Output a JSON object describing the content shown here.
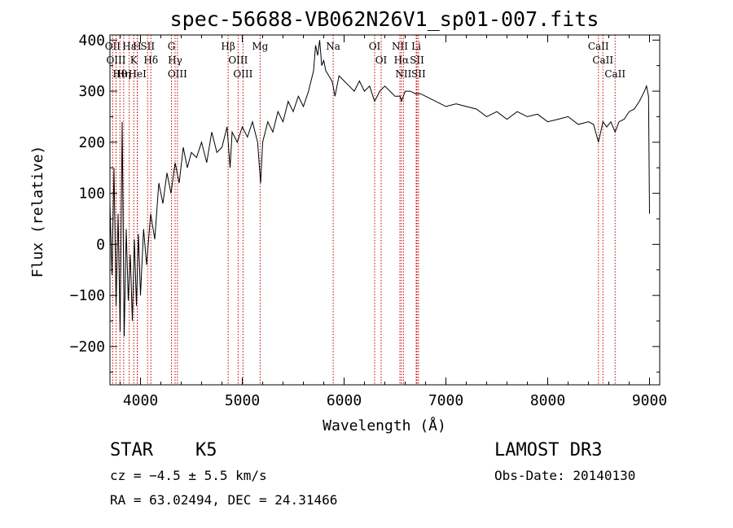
{
  "chart_data": {
    "type": "line",
    "title": "spec-56688-VB062N26V1_sp01-007.fits",
    "xlabel": "Wavelength (Å)",
    "ylabel": "Flux (relative)",
    "xlim": [
      3700,
      9100
    ],
    "ylim": [
      -275,
      410
    ],
    "x_ticks": [
      4000,
      5000,
      6000,
      7000,
      8000,
      9000
    ],
    "x_tick_labels": [
      "4000",
      "5000",
      "6000",
      "7000",
      "8000",
      "9000"
    ],
    "y_ticks": [
      -200,
      -100,
      0,
      100,
      200,
      300,
      400
    ],
    "y_tick_labels": [
      "−200",
      "−100",
      "0",
      "100",
      "200",
      "300",
      "400"
    ],
    "series": [
      {
        "name": "flux",
        "x": [
          3700,
          3720,
          3740,
          3760,
          3780,
          3800,
          3820,
          3840,
          3860,
          3880,
          3900,
          3920,
          3940,
          3960,
          3980,
          4000,
          4030,
          4060,
          4100,
          4140,
          4180,
          4220,
          4260,
          4300,
          4340,
          4380,
          4420,
          4460,
          4500,
          4550,
          4600,
          4650,
          4700,
          4750,
          4800,
          4850,
          4880,
          4900,
          4950,
          5000,
          5050,
          5100,
          5150,
          5180,
          5200,
          5250,
          5300,
          5350,
          5400,
          5450,
          5500,
          5550,
          5600,
          5650,
          5700,
          5720,
          5740,
          5760,
          5780,
          5800,
          5820,
          5850,
          5880,
          5893,
          5910,
          5950,
          6000,
          6050,
          6100,
          6150,
          6200,
          6250,
          6300,
          6350,
          6400,
          6450,
          6500,
          6550,
          6563,
          6600,
          6650,
          6700,
          6750,
          6800,
          6900,
          7000,
          7100,
          7200,
          7300,
          7400,
          7500,
          7600,
          7700,
          7800,
          7900,
          8000,
          8100,
          8200,
          8300,
          8400,
          8450,
          8498,
          8542,
          8580,
          8620,
          8662,
          8700,
          8750,
          8800,
          8850,
          8900,
          8950,
          8970,
          8990,
          9000
        ],
        "y": [
          80,
          -60,
          150,
          -120,
          60,
          -170,
          240,
          -180,
          30,
          -110,
          -20,
          -150,
          10,
          -120,
          20,
          -100,
          30,
          -40,
          60,
          10,
          120,
          80,
          140,
          100,
          160,
          120,
          190,
          150,
          180,
          170,
          200,
          160,
          220,
          180,
          190,
          230,
          150,
          220,
          200,
          230,
          210,
          240,
          200,
          120,
          200,
          240,
          220,
          260,
          240,
          280,
          260,
          290,
          270,
          300,
          340,
          390,
          370,
          400,
          350,
          360,
          340,
          330,
          320,
          310,
          290,
          330,
          320,
          310,
          300,
          320,
          300,
          310,
          280,
          300,
          310,
          300,
          290,
          290,
          280,
          300,
          300,
          295,
          295,
          290,
          280,
          270,
          275,
          270,
          265,
          250,
          260,
          245,
          260,
          250,
          255,
          240,
          245,
          250,
          235,
          240,
          235,
          200,
          240,
          230,
          240,
          220,
          240,
          245,
          260,
          265,
          280,
          300,
          310,
          290,
          60
        ]
      }
    ],
    "line_markers": [
      {
        "label": "Hθ",
        "wavelength": 3798
      },
      {
        "label": "OII",
        "wavelength": 3727
      },
      {
        "label": "OIII",
        "wavelength": 3760
      },
      {
        "label": "Hε",
        "wavelength": 3889
      },
      {
        "label": "Hη",
        "wavelength": 3835
      },
      {
        "label": "K",
        "wavelength": 3934
      },
      {
        "label": "HeI",
        "wavelength": 3970
      },
      {
        "label": "H",
        "wavelength": 3968
      },
      {
        "label": "Hδ",
        "wavelength": 4102
      },
      {
        "label": "SII",
        "wavelength": 4070
      },
      {
        "label": "OIII",
        "wavelength": 4363
      },
      {
        "label": "Hγ",
        "wavelength": 4340
      },
      {
        "label": "G",
        "wavelength": 4304
      },
      {
        "label": "Hβ",
        "wavelength": 4861
      },
      {
        "label": "OIII",
        "wavelength": 5007
      },
      {
        "label": "OIII",
        "wavelength": 4959
      },
      {
        "label": "Mg",
        "wavelength": 5175
      },
      {
        "label": "Na",
        "wavelength": 5893
      },
      {
        "label": "OI",
        "wavelength": 6300
      },
      {
        "label": "OI",
        "wavelength": 6364
      },
      {
        "label": "Hα",
        "wavelength": 6563
      },
      {
        "label": "NII",
        "wavelength": 6548
      },
      {
        "label": "NII",
        "wavelength": 6583
      },
      {
        "label": "SII",
        "wavelength": 6716
      },
      {
        "label": "Li",
        "wavelength": 6708
      },
      {
        "label": "SII",
        "wavelength": 6731
      },
      {
        "label": "CaII",
        "wavelength": 8542
      },
      {
        "label": "CaII",
        "wavelength": 8498
      },
      {
        "label": "CaII",
        "wavelength": 8662
      }
    ]
  },
  "info": {
    "object_class": "STAR",
    "subclass": "K5",
    "survey": "LAMOST DR3",
    "cz": "cz = −4.5 ± 5.5 km/s",
    "obs_date": "Obs-Date: 20140130",
    "coords": "RA =  63.02494, DEC =  24.31466"
  },
  "colors": {
    "line": "#000000",
    "marker": "#c00000",
    "background": "#ffffff"
  }
}
